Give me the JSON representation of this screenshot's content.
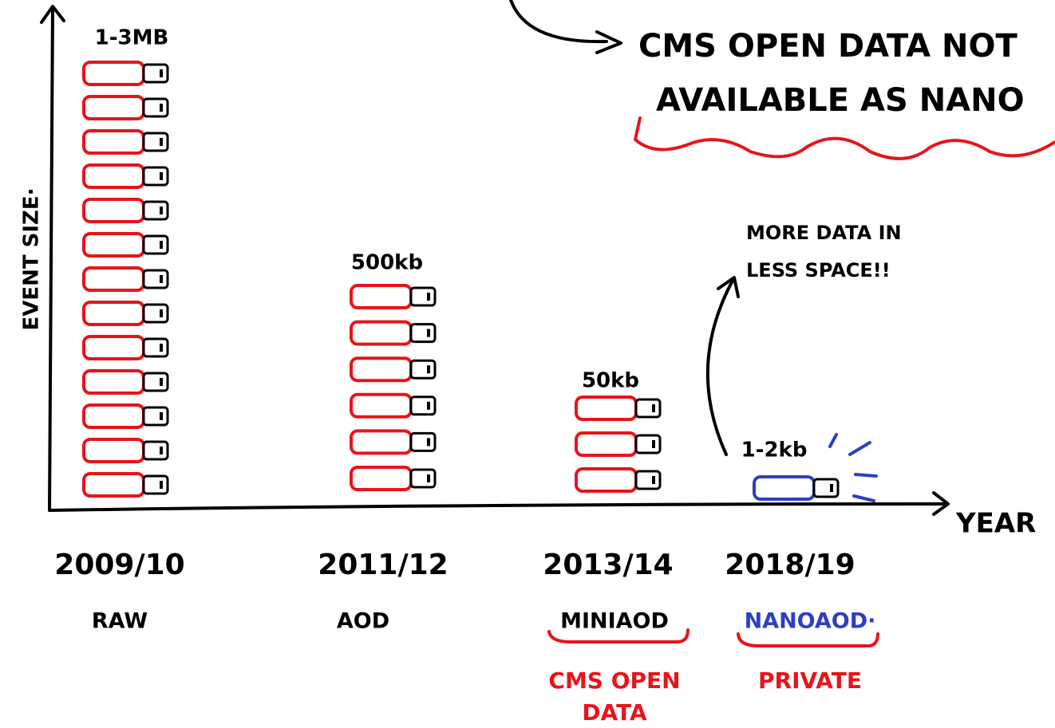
{
  "axes": {
    "y_label": "EVENT SIZE·",
    "x_label": "YEAR"
  },
  "callout": {
    "lines": [
      "CMS OPEN DATA NOT",
      "AVAILABLE AS NANO"
    ]
  },
  "annotation": {
    "lines": [
      "MORE DATA IN",
      "LESS SPACE!!"
    ]
  },
  "columns": [
    {
      "size": "1-3MB",
      "years": "2009/10",
      "format": "RAW"
    },
    {
      "size": "500kb",
      "years": "2011/12",
      "format": "AOD"
    },
    {
      "size": "50kb",
      "years": "2013/14",
      "format": "MINIAOD",
      "note_lines": [
        "CMS OPEN",
        "DATA"
      ]
    },
    {
      "size": "1-2kb",
      "years": "2018/19",
      "format": "NANOAOD·",
      "note_lines": [
        "PRIVATE"
      ]
    }
  ]
}
